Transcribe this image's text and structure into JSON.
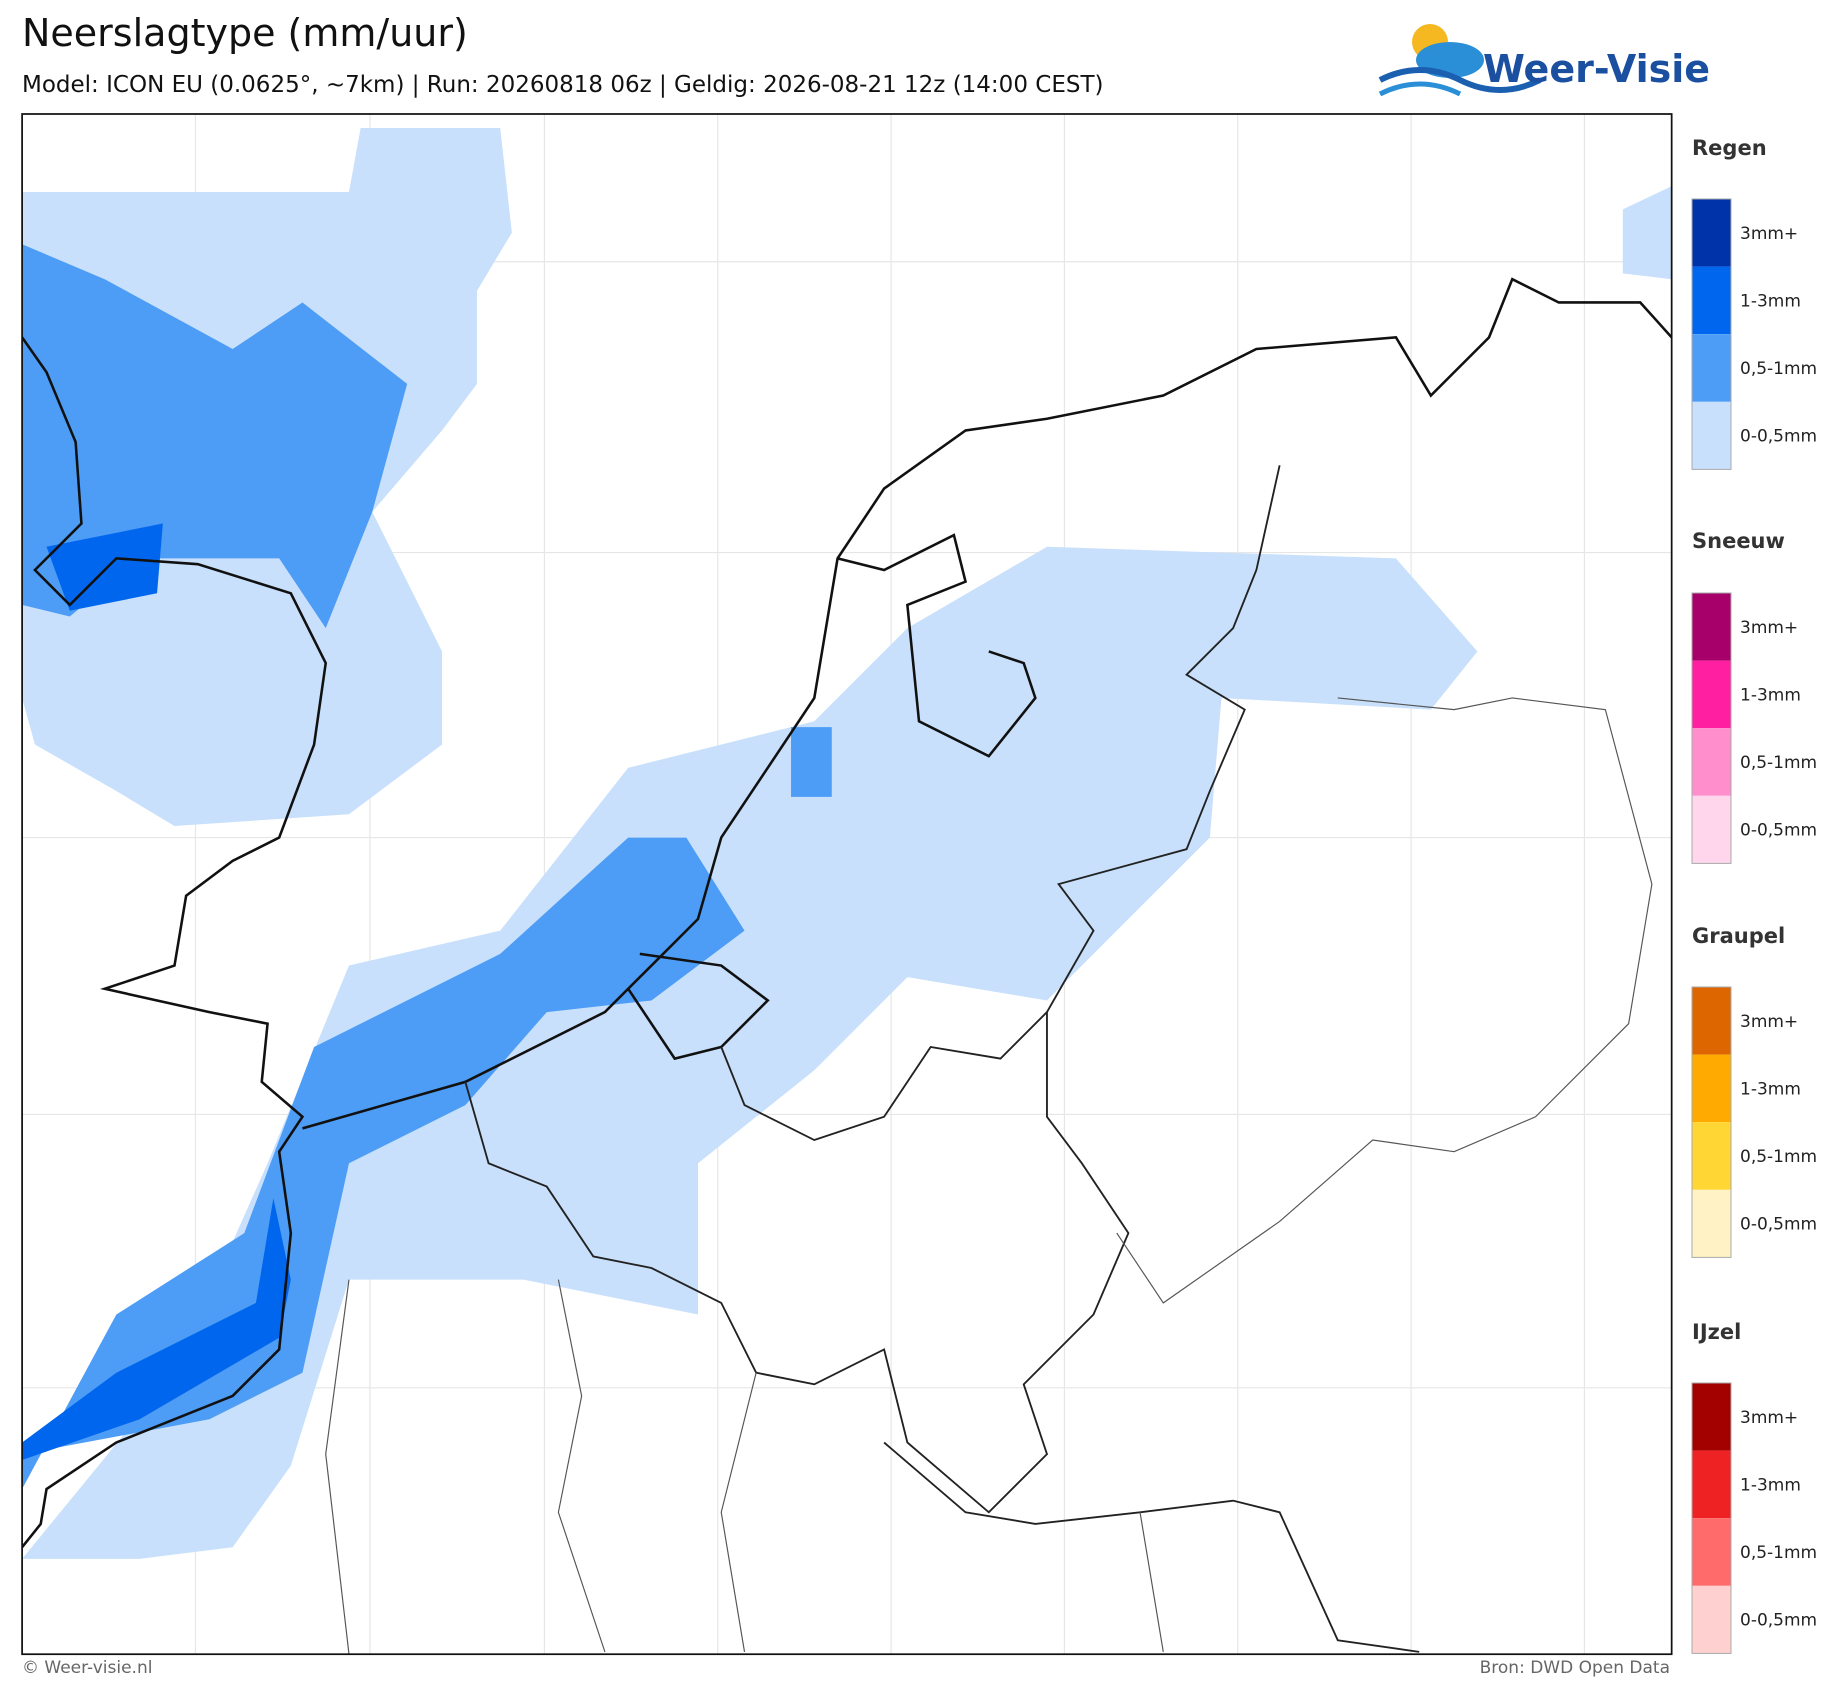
{
  "header": {
    "title": "Neerslagtype (mm/uur)",
    "subtitle": "Model: ICON EU (0.0625°, ~7km)  |  Run: 20260818 06z  |  Geldig: 2026-08-21 12z (14:00 CEST)"
  },
  "logo": {
    "text": "Weer-Visie"
  },
  "legend": [
    {
      "title": "Regen",
      "items": [
        {
          "label": "3mm+",
          "color": "#0033aa"
        },
        {
          "label": "1-3mm",
          "color": "#0066ee"
        },
        {
          "label": "0,5-1mm",
          "color": "#4d9cf5"
        },
        {
          "label": "0-0,5mm",
          "color": "#c8e0fb"
        }
      ]
    },
    {
      "title": "Sneeuw",
      "items": [
        {
          "label": "3mm+",
          "color": "#a8006a"
        },
        {
          "label": "1-3mm",
          "color": "#ff1fa0"
        },
        {
          "label": "0,5-1mm",
          "color": "#ff8fcc"
        },
        {
          "label": "0-0,5mm",
          "color": "#ffd6ec"
        }
      ]
    },
    {
      "title": "Graupel",
      "items": [
        {
          "label": "3mm+",
          "color": "#dd6600"
        },
        {
          "label": "1-3mm",
          "color": "#ffaa00"
        },
        {
          "label": "0,5-1mm",
          "color": "#ffd633"
        },
        {
          "label": "0-0,5mm",
          "color": "#fff2c4"
        }
      ]
    },
    {
      "title": "IJzel",
      "items": [
        {
          "label": "3mm+",
          "color": "#a30000"
        },
        {
          "label": "1-3mm",
          "color": "#ee2222"
        },
        {
          "label": "0,5-1mm",
          "color": "#ff6b6b"
        },
        {
          "label": "0-0,5mm",
          "color": "#ffd0d0"
        }
      ]
    }
  ],
  "footer": {
    "left": "© Weer-visie.nl",
    "right": "Bron: DWD Open Data"
  }
}
